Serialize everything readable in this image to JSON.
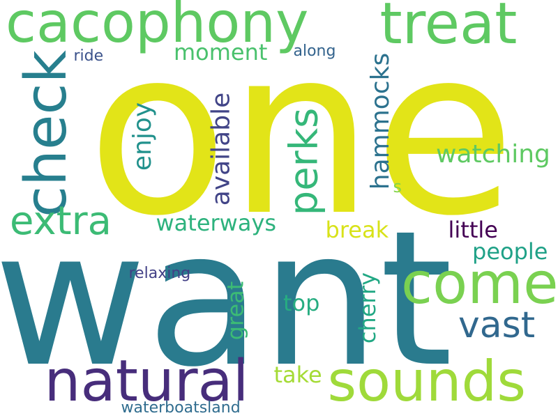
{
  "words": [
    {
      "text": "one",
      "color": "#e2e418",
      "rotate": 0
    },
    {
      "text": "want",
      "color": "#2a7b8e",
      "rotate": 0
    },
    {
      "text": "cacophony",
      "color": "#5ec962",
      "rotate": 0
    },
    {
      "text": "treat",
      "color": "#5ec962",
      "rotate": 0
    },
    {
      "text": "natural",
      "color": "#472d7b",
      "rotate": 0
    },
    {
      "text": "sounds",
      "color": "#9fda3a",
      "rotate": 0
    },
    {
      "text": "check",
      "color": "#277f8e",
      "rotate": -90
    },
    {
      "text": "come",
      "color": "#7ad151",
      "rotate": 0
    },
    {
      "text": "extra",
      "color": "#3cbb75",
      "rotate": 0
    },
    {
      "text": "perks",
      "color": "#35b779",
      "rotate": -90
    },
    {
      "text": "vast",
      "color": "#31688e",
      "rotate": 0
    },
    {
      "text": "watching",
      "color": "#5ec962",
      "rotate": 0
    },
    {
      "text": "moment",
      "color": "#4ac16d",
      "rotate": 0
    },
    {
      "text": "enjoy",
      "color": "#21918c",
      "rotate": -90
    },
    {
      "text": "available",
      "color": "#414487",
      "rotate": -90
    },
    {
      "text": "hammocks",
      "color": "#2c728e",
      "rotate": -90
    },
    {
      "text": "waterways",
      "color": "#2db27d",
      "rotate": 0
    },
    {
      "text": "break",
      "color": "#d8e219",
      "rotate": 0
    },
    {
      "text": "little",
      "color": "#440154",
      "rotate": 0
    },
    {
      "text": "people",
      "color": "#1fa187",
      "rotate": 0
    },
    {
      "text": "top",
      "color": "#27ad81",
      "rotate": 0
    },
    {
      "text": "great",
      "color": "#3cbb75",
      "rotate": -90
    },
    {
      "text": "cherry",
      "color": "#22a884",
      "rotate": -90
    },
    {
      "text": "take",
      "color": "#a5db36",
      "rotate": 0
    },
    {
      "text": "relaxing",
      "color": "#424086",
      "rotate": 0
    },
    {
      "text": "ride",
      "color": "#3b528b",
      "rotate": 0
    },
    {
      "text": "along",
      "color": "#33638d",
      "rotate": 0
    },
    {
      "text": "s",
      "color": "#84d44b",
      "rotate": 0
    },
    {
      "text": "waterboatsland",
      "color": "#2f6c8e",
      "rotate": 0
    }
  ]
}
